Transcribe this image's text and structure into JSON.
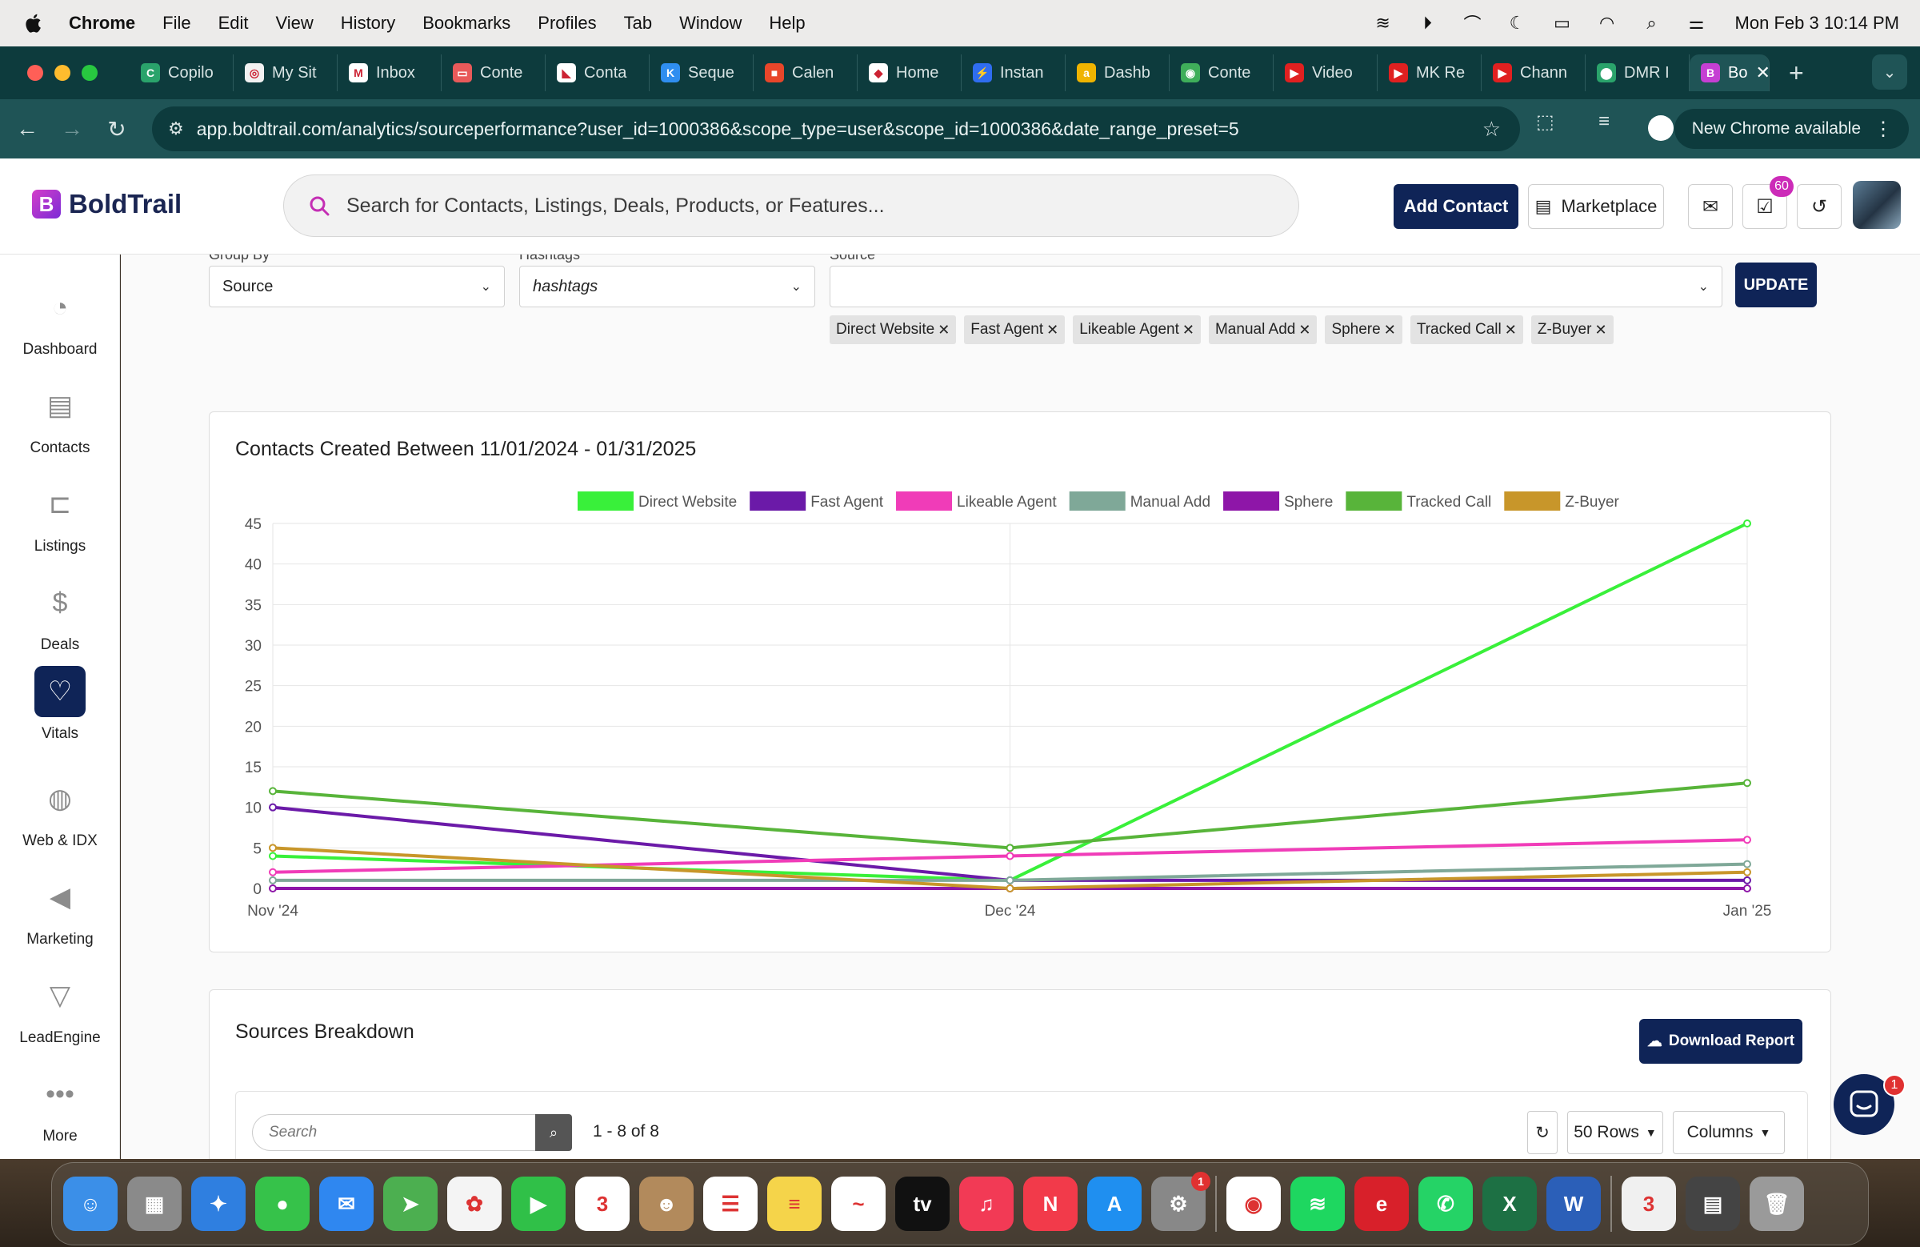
{
  "menubar": {
    "app": "Chrome",
    "items": [
      "File",
      "Edit",
      "View",
      "History",
      "Bookmarks",
      "Profiles",
      "Tab",
      "Window",
      "Help"
    ],
    "clock": "Mon Feb 3  10:14 PM"
  },
  "tabs": [
    {
      "label": "Copilo",
      "color": "#2aa36b",
      "glyph": "C"
    },
    {
      "label": "My Sit",
      "color": "#f2f2f2",
      "glyph": "◎"
    },
    {
      "label": "Inbox",
      "color": "#ffffff",
      "glyph": "M"
    },
    {
      "label": "Conte",
      "color": "#e85a5a",
      "glyph": "▭"
    },
    {
      "label": "Conta",
      "color": "#ffffff",
      "glyph": "◣"
    },
    {
      "label": "Seque",
      "color": "#2f8ef0",
      "glyph": "K"
    },
    {
      "label": "Calen",
      "color": "#e8462a",
      "glyph": "■"
    },
    {
      "label": "Home",
      "color": "#ffffff",
      "glyph": "◆"
    },
    {
      "label": "Instan",
      "color": "#2f6df0",
      "glyph": "⚡"
    },
    {
      "label": "Dashb",
      "color": "#f0b400",
      "glyph": "a"
    },
    {
      "label": "Conte",
      "color": "#3fae5a",
      "glyph": "◉"
    },
    {
      "label": "Video",
      "color": "#e02020",
      "glyph": "▶"
    },
    {
      "label": "MK Re",
      "color": "#e02020",
      "glyph": "▶"
    },
    {
      "label": "Chann",
      "color": "#e02020",
      "glyph": "▶"
    },
    {
      "label": "DMR I",
      "color": "#2aa36b",
      "glyph": "⬤"
    }
  ],
  "active_tab": {
    "label": "Bo",
    "color": "#c53fd3",
    "glyph": "B"
  },
  "address": {
    "url": "app.boldtrail.com/analytics/sourceperformance?user_id=1000386&scope_type=user&scope_id=1000386&date_range_preset=5",
    "update_notice": "New Chrome available"
  },
  "header": {
    "logo_text": "BoldTrail",
    "search_placeholder": "Search for Contacts, Listings, Deals, Products, or Features...",
    "add_contact": "Add Contact",
    "marketplace": "Marketplace",
    "tasks_badge": "60"
  },
  "sidebar": [
    {
      "label": "Dashboard",
      "icon": "gauge-icon"
    },
    {
      "label": "Contacts",
      "icon": "contact-card-icon"
    },
    {
      "label": "Listings",
      "icon": "sign-post-icon"
    },
    {
      "label": "Deals",
      "icon": "money-icon"
    },
    {
      "label": "Vitals",
      "icon": "heart-pulse-icon"
    },
    {
      "label": "Web & IDX",
      "icon": "globe-icon"
    },
    {
      "label": "Marketing",
      "icon": "megaphone-icon"
    },
    {
      "label": "LeadEngine",
      "icon": "funnel-icon"
    },
    {
      "label": "More",
      "icon": "more-dots-icon"
    }
  ],
  "filters": {
    "group_by_label": "Group By",
    "group_by_value": "Source",
    "hashtags_label": "Hashtags",
    "hashtags_value": "hashtags",
    "source_label": "Source",
    "source_value": "",
    "update": "UPDATE",
    "chips": [
      "Direct Website",
      "Fast Agent",
      "Likeable Agent",
      "Manual Add",
      "Sphere",
      "Tracked Call",
      "Z-Buyer"
    ]
  },
  "chart_data": {
    "type": "line",
    "title": "Contacts Created Between 11/01/2024 - 01/31/2025",
    "xlabel": "",
    "ylabel": "",
    "categories": [
      "Nov '24",
      "Dec '24",
      "Jan '25"
    ],
    "ylim": [
      0,
      45
    ],
    "yticks": [
      0,
      5,
      10,
      15,
      20,
      25,
      30,
      35,
      40,
      45
    ],
    "grid": true,
    "legend": "top",
    "series": [
      {
        "name": "Direct Website",
        "color": "#39f03a",
        "values": [
          4,
          1,
          45
        ]
      },
      {
        "name": "Fast Agent",
        "color": "#6b1aa8",
        "values": [
          10,
          1,
          1
        ]
      },
      {
        "name": "Likeable Agent",
        "color": "#f03cb8",
        "values": [
          2,
          4,
          6
        ]
      },
      {
        "name": "Manual Add",
        "color": "#7fa898",
        "values": [
          1,
          1,
          3
        ]
      },
      {
        "name": "Sphere",
        "color": "#8e16a8",
        "values": [
          0,
          0,
          0
        ]
      },
      {
        "name": "Tracked Call",
        "color": "#58b43a",
        "values": [
          12,
          5,
          13
        ]
      },
      {
        "name": "Z-Buyer",
        "color": "#c8962a",
        "values": [
          5,
          0,
          2
        ]
      }
    ]
  },
  "breakdown": {
    "title": "Sources Breakdown",
    "download": "Download Report",
    "search_placeholder": "Search",
    "pager": "1 - 8 of 8",
    "rows": "50 Rows",
    "columns": "Columns"
  },
  "chat_badge": "1",
  "dock": [
    {
      "name": "finder-icon",
      "color": "#3b8fe8",
      "glyph": "☺"
    },
    {
      "name": "launchpad-icon",
      "color": "#8a8a8a",
      "glyph": "▦"
    },
    {
      "name": "safari-icon",
      "color": "#2f7fe0",
      "glyph": "✦"
    },
    {
      "name": "messages-icon",
      "color": "#36c24a",
      "glyph": "●"
    },
    {
      "name": "mail-icon",
      "color": "#2f87f0",
      "glyph": "✉"
    },
    {
      "name": "maps-icon",
      "color": "#4caf50",
      "glyph": "➤"
    },
    {
      "name": "photos-icon",
      "color": "#f4f4f4",
      "glyph": "✿"
    },
    {
      "name": "facetime-icon",
      "color": "#30c048",
      "glyph": "▶"
    },
    {
      "name": "calendar-icon",
      "color": "#ffffff",
      "glyph": "3"
    },
    {
      "name": "contacts-icon",
      "color": "#b28a5c",
      "glyph": "☻"
    },
    {
      "name": "reminders-icon",
      "color": "#ffffff",
      "glyph": "☰"
    },
    {
      "name": "notes-icon",
      "color": "#f5d44a",
      "glyph": "≡"
    },
    {
      "name": "freeform-icon",
      "color": "#ffffff",
      "glyph": "~"
    },
    {
      "name": "apple-tv-icon",
      "color": "#111111",
      "glyph": "tv"
    },
    {
      "name": "music-icon",
      "color": "#f23a55",
      "glyph": "♫"
    },
    {
      "name": "news-icon",
      "color": "#f23a4a",
      "glyph": "N"
    },
    {
      "name": "app-store-icon",
      "color": "#1f8ff0",
      "glyph": "A"
    },
    {
      "name": "system-settings-icon",
      "color": "#888888",
      "glyph": "⚙",
      "badge": "1"
    },
    {
      "name": "chrome-icon",
      "color": "#ffffff",
      "glyph": "◉"
    },
    {
      "name": "spotify-icon",
      "color": "#1ed760",
      "glyph": "≋"
    },
    {
      "name": "expressvpn-icon",
      "color": "#d8202a",
      "glyph": "e"
    },
    {
      "name": "whatsapp-icon",
      "color": "#25d366",
      "glyph": "✆"
    },
    {
      "name": "excel-icon",
      "color": "#1d7044",
      "glyph": "X"
    },
    {
      "name": "word-icon",
      "color": "#2b5fb8",
      "glyph": "W"
    },
    {
      "name": "calendar-doc-icon",
      "color": "#f0f0f0",
      "glyph": "3"
    },
    {
      "name": "screenshot-icon",
      "color": "#444444",
      "glyph": "▤"
    },
    {
      "name": "trash-icon",
      "color": "#9a9a9a",
      "glyph": "🗑"
    }
  ]
}
